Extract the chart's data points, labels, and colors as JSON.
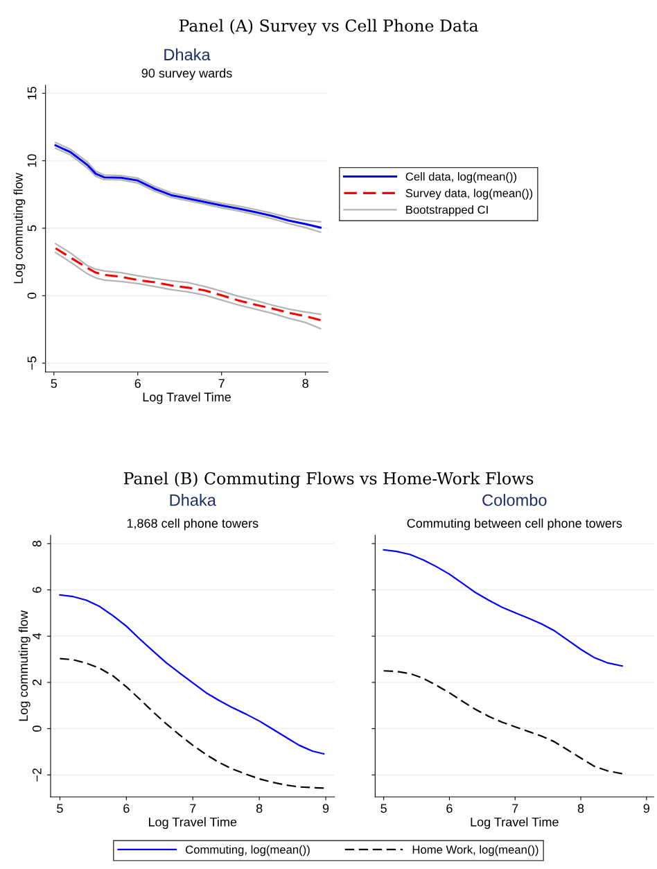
{
  "chart_data": [
    {
      "type": "line",
      "title": "Dhaka",
      "subtitle": "90 survey wards",
      "xlabel": "Log Travel Time",
      "ylabel": "Log commuting flow",
      "annotations": [
        "Panel (A) Survey vs Cell Phone Data"
      ],
      "xlim": [
        4.9,
        8.27
      ],
      "xticks": [
        5,
        6,
        7,
        8
      ],
      "ylim": [
        -5.65,
        15.6
      ],
      "yticks": [
        {
          "value": -5,
          "label": "−5"
        },
        0,
        5,
        10,
        15
      ],
      "grid": "y",
      "legend": "right",
      "x": [
        5.02,
        5.2,
        5.4,
        5.5,
        5.6,
        5.8,
        6.0,
        6.2,
        6.4,
        6.6,
        6.8,
        7.0,
        7.2,
        7.4,
        7.6,
        7.8,
        8.0,
        8.18
      ],
      "series": [
        {
          "name": "Cell data, log(mean())",
          "color": "#0000ff",
          "line_style": "solid",
          "values": [
            11.14,
            10.63,
            9.68,
            9.03,
            8.77,
            8.74,
            8.53,
            7.92,
            7.45,
            7.2,
            6.94,
            6.68,
            6.46,
            6.2,
            5.91,
            5.57,
            5.31,
            5.05
          ]
        },
        {
          "name": "Survey data, log(mean())",
          "color": "#ff0000",
          "line_style": "dashed",
          "values": [
            3.51,
            2.82,
            2.05,
            1.71,
            1.54,
            1.4,
            1.16,
            0.99,
            0.76,
            0.59,
            0.39,
            0.03,
            -0.35,
            -0.66,
            -0.95,
            -1.26,
            -1.52,
            -1.81
          ]
        },
        {
          "name": "Bootstrapped CI",
          "color": "#b4b4b4",
          "line_style": "solid",
          "values": [
            11.35,
            10.84,
            9.9,
            9.22,
            8.94,
            8.9,
            8.71,
            8.1,
            7.62,
            7.36,
            7.1,
            6.85,
            6.64,
            6.39,
            6.11,
            5.79,
            5.57,
            5.48
          ]
        },
        {
          "color": "#b4b4b4",
          "line_style": "solid",
          "values": [
            10.93,
            10.42,
            9.46,
            8.84,
            8.6,
            8.58,
            8.35,
            7.74,
            7.28,
            7.04,
            6.78,
            6.51,
            6.28,
            6.01,
            5.71,
            5.35,
            5.05,
            4.71
          ]
        },
        {
          "color": "#b4b4b4",
          "line_style": "solid",
          "values": [
            3.85,
            3.16,
            2.22,
            1.96,
            1.84,
            1.71,
            1.48,
            1.28,
            1.11,
            0.97,
            0.68,
            0.33,
            -0.04,
            -0.35,
            -0.69,
            -0.99,
            -1.21,
            -1.38
          ]
        },
        {
          "color": "#b4b4b4",
          "line_style": "solid",
          "values": [
            3.2,
            2.48,
            1.62,
            1.31,
            1.16,
            1.05,
            0.9,
            0.68,
            0.45,
            0.28,
            0.04,
            -0.32,
            -0.69,
            -0.99,
            -1.3,
            -1.67,
            -1.98,
            -2.44
          ]
        }
      ]
    },
    {
      "type": "line",
      "title": "Dhaka",
      "subtitle": "1,868 cell phone towers",
      "xlabel": "Log Travel Time",
      "ylabel": "Log commuting flow",
      "annotations": [
        "Panel (B) Commuting Flows vs Home-Work Flows"
      ],
      "xlim": [
        4.86,
        9.13
      ],
      "xticks": [
        5,
        6,
        7,
        8,
        9
      ],
      "ylim": [
        -2.95,
        8.36
      ],
      "yticks": [
        {
          "value": -2,
          "label": "−2"
        },
        0,
        2,
        4,
        6,
        8
      ],
      "grid": "y",
      "legend": "bottom",
      "x": [
        5.0,
        5.2,
        5.4,
        5.6,
        5.8,
        6.0,
        6.2,
        6.4,
        6.6,
        6.8,
        7.0,
        7.2,
        7.4,
        7.6,
        7.8,
        8.0,
        8.2,
        8.4,
        8.6,
        8.8,
        8.97
      ],
      "series": [
        {
          "name": "Commuting, log(mean())",
          "color": "#0000ff",
          "line_style": "solid",
          "values": [
            5.78,
            5.71,
            5.55,
            5.28,
            4.88,
            4.43,
            3.88,
            3.36,
            2.85,
            2.41,
            1.98,
            1.55,
            1.21,
            0.9,
            0.63,
            0.33,
            -0.02,
            -0.37,
            -0.72,
            -0.97,
            -1.09
          ]
        },
        {
          "name": "Home Work, log(mean())",
          "color": "#000000",
          "line_style": "dashed",
          "values": [
            3.03,
            2.98,
            2.83,
            2.61,
            2.28,
            1.81,
            1.28,
            0.73,
            0.21,
            -0.27,
            -0.72,
            -1.12,
            -1.47,
            -1.75,
            -1.97,
            -2.17,
            -2.32,
            -2.44,
            -2.52,
            -2.55,
            -2.57
          ]
        }
      ]
    },
    {
      "type": "line",
      "title": "Colombo",
      "subtitle": "Commuting between cell phone towers",
      "xlabel": "Log Travel Time",
      "xlim": [
        4.87,
        9.11
      ],
      "xticks": [
        5,
        6,
        7,
        8,
        9
      ],
      "ylim": [
        -2.95,
        8.36
      ],
      "yticks": [
        -2,
        0,
        2,
        4,
        6,
        8
      ],
      "grid": "y",
      "tick_labels": "x",
      "x": [
        5.0,
        5.2,
        5.4,
        5.6,
        5.8,
        6.0,
        6.2,
        6.4,
        6.6,
        6.8,
        7.0,
        7.2,
        7.4,
        7.6,
        7.8,
        8.0,
        8.2,
        8.4,
        8.63
      ],
      "series": [
        {
          "color": "#0000ff",
          "line_style": "solid",
          "values": [
            7.73,
            7.66,
            7.53,
            7.3,
            7.01,
            6.68,
            6.28,
            5.88,
            5.55,
            5.25,
            5.01,
            4.78,
            4.53,
            4.23,
            3.83,
            3.43,
            3.08,
            2.85,
            2.71
          ]
        },
        {
          "color": "#000000",
          "line_style": "dashed",
          "values": [
            2.5,
            2.47,
            2.38,
            2.18,
            1.88,
            1.55,
            1.18,
            0.83,
            0.53,
            0.28,
            0.08,
            -0.12,
            -0.32,
            -0.57,
            -0.92,
            -1.27,
            -1.62,
            -1.82,
            -1.95
          ]
        }
      ]
    }
  ]
}
